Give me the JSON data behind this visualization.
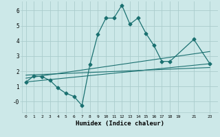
{
  "xlabel": "Humidex (Indice chaleur)",
  "background_color": "#cce8e8",
  "grid_color": "#aacccc",
  "line_color": "#1a7070",
  "xlim": [
    -0.5,
    24.0
  ],
  "ylim": [
    -0.7,
    6.6
  ],
  "xticks": [
    0,
    1,
    2,
    3,
    4,
    5,
    6,
    7,
    8,
    9,
    10,
    11,
    12,
    13,
    14,
    15,
    16,
    17,
    18,
    19,
    21,
    23
  ],
  "yticks": [
    0,
    1,
    2,
    3,
    4,
    5,
    6
  ],
  "ytick_labels": [
    "-0",
    "1",
    "2",
    "3",
    "4",
    "5",
    "6"
  ],
  "main_line_x": [
    0,
    1,
    2,
    3,
    4,
    5,
    6,
    7,
    8,
    9,
    10,
    11,
    12,
    13,
    14,
    15,
    16,
    17,
    18,
    21,
    23
  ],
  "main_line_y": [
    1.3,
    1.7,
    1.65,
    1.4,
    0.9,
    0.55,
    0.35,
    -0.25,
    2.45,
    4.45,
    5.5,
    5.5,
    6.35,
    5.1,
    5.5,
    4.5,
    3.7,
    2.65,
    2.65,
    4.1,
    2.5
  ],
  "line2_x": [
    0,
    23
  ],
  "line2_y": [
    1.3,
    2.5
  ],
  "line3_x": [
    0,
    23
  ],
  "line3_y": [
    1.55,
    3.3
  ],
  "line4_x": [
    0,
    23
  ],
  "line4_y": [
    1.75,
    2.25
  ]
}
